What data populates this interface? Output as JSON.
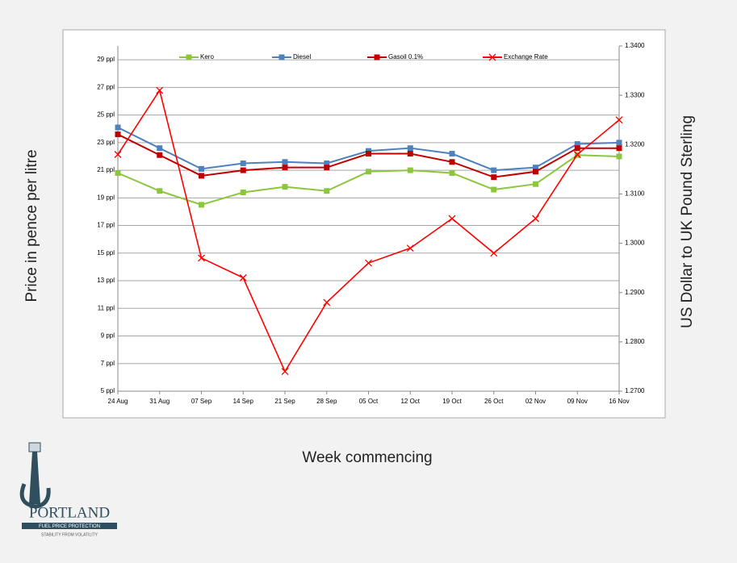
{
  "chart_data": {
    "type": "line",
    "y_label": "Price in pence per litre",
    "y2_label": "US Dollar to UK Pound Sterling",
    "x_label": "Week commencing",
    "categories": [
      "24 Aug",
      "31 Aug",
      "07 Sep",
      "14 Sep",
      "21 Sep",
      "28 Sep",
      "05 Oct",
      "12 Oct",
      "19 Oct",
      "26 Oct",
      "02 Nov",
      "09 Nov",
      "16 Nov"
    ],
    "series": [
      {
        "name": "Kero",
        "color": "#8cc63f",
        "marker": "square",
        "values": [
          20.8,
          19.5,
          18.5,
          19.4,
          19.8,
          19.5,
          20.9,
          21.0,
          20.8,
          19.6,
          20.0,
          22.1,
          22.0
        ]
      },
      {
        "name": "Diesel",
        "color": "#4f81bd",
        "marker": "square",
        "values": [
          24.1,
          22.6,
          21.1,
          21.5,
          21.6,
          21.5,
          22.4,
          22.6,
          22.2,
          21.0,
          21.2,
          22.9,
          23.0
        ]
      },
      {
        "name": "Gasoil 0.1%",
        "color": "#c00000",
        "marker": "square",
        "values": [
          23.6,
          22.1,
          20.6,
          21.0,
          21.2,
          21.2,
          22.2,
          22.2,
          21.6,
          20.5,
          20.9,
          22.6,
          22.6
        ]
      },
      {
        "name": "Exchange Rate",
        "color": "#ff0000",
        "marker": "x",
        "axis": "y2",
        "values": [
          1.318,
          1.331,
          1.297,
          1.293,
          1.274,
          1.288,
          1.296,
          1.299,
          1.305,
          1.298,
          1.305,
          1.318,
          1.325
        ]
      }
    ],
    "ylim": [
      5,
      30
    ],
    "yticks": [
      {
        "value": 5,
        "label": "5 ppl"
      },
      {
        "value": 7,
        "label": "7 ppl"
      },
      {
        "value": 9,
        "label": "9 ppl"
      },
      {
        "value": 11,
        "label": "11 ppl"
      },
      {
        "value": 13,
        "label": "13 ppl"
      },
      {
        "value": 15,
        "label": "15 ppl"
      },
      {
        "value": 17,
        "label": "17 ppl"
      },
      {
        "value": 19,
        "label": "19 ppl"
      },
      {
        "value": 21,
        "label": "21 ppl"
      },
      {
        "value": 23,
        "label": "23 ppl"
      },
      {
        "value": 25,
        "label": "25 ppl"
      },
      {
        "value": 27,
        "label": "27 ppl"
      },
      {
        "value": 29,
        "label": "29 ppl"
      }
    ],
    "y2lim": [
      1.27,
      1.34
    ],
    "y2ticks": [
      {
        "value": 1.27,
        "label": "1.2700"
      },
      {
        "value": 1.28,
        "label": "1.2800"
      },
      {
        "value": 1.29,
        "label": "1.2900"
      },
      {
        "value": 1.3,
        "label": "1.3000"
      },
      {
        "value": 1.31,
        "label": "1.3100"
      },
      {
        "value": 1.32,
        "label": "1.3200"
      },
      {
        "value": 1.33,
        "label": "1.3300"
      },
      {
        "value": 1.34,
        "label": "1.3400"
      }
    ],
    "grid": true,
    "legend": "top"
  },
  "logo": {
    "name": "PORTLAND",
    "tagline": "FUEL PRICE PROTECTION",
    "motto": "STABILITY FROM VOLATILITY"
  }
}
